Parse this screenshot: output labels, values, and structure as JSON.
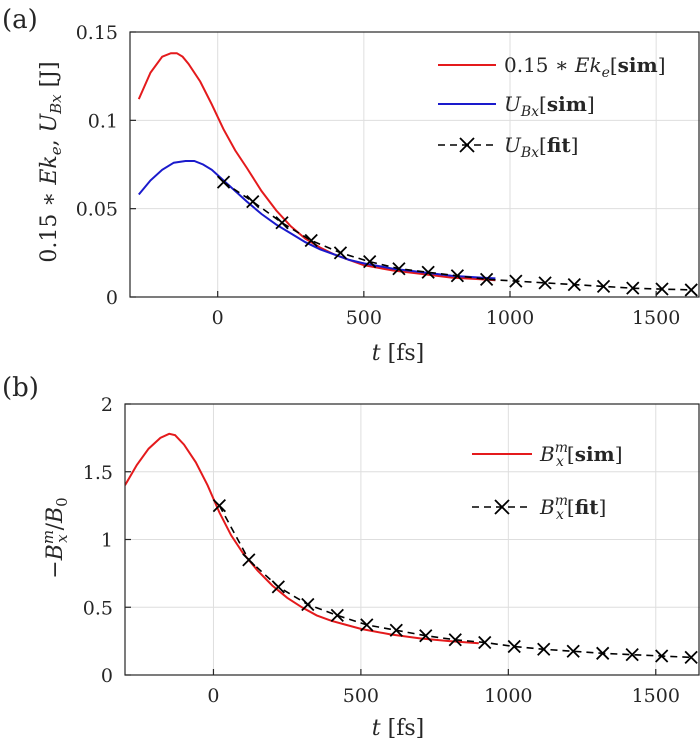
{
  "colors": {
    "red": "#e41a1c",
    "blue": "#1a1acc",
    "black": "#000000",
    "grid": "#dedede",
    "axis": "#262626"
  },
  "chart_data": [
    {
      "type": "line",
      "panel_label": "(a)",
      "xlabel": "t [fs]",
      "ylabel": "0.15 * Ek_e, U_Bx [J]",
      "xlim": [
        -300,
        1650
      ],
      "ylim": [
        0,
        0.15
      ],
      "xticks": [
        "0",
        "500",
        "1000",
        "1500"
      ],
      "xtick_values": [
        0,
        500,
        1000,
        1500
      ],
      "yticks": [
        "0",
        "0.05",
        "0.1",
        "0.15"
      ],
      "ytick_values": [
        0,
        0.05,
        0.1,
        0.15
      ],
      "grid": true,
      "legend_position": "top-right",
      "series": [
        {
          "name": "0.15 * Ek_e[sim]",
          "color": "red",
          "style": "solid",
          "x": [
            -270,
            -230,
            -190,
            -160,
            -140,
            -120,
            -100,
            -60,
            -20,
            20,
            60,
            100,
            150,
            200,
            250,
            300,
            350,
            400,
            450,
            500,
            600,
            700,
            800,
            900,
            950
          ],
          "y": [
            0.112,
            0.127,
            0.136,
            0.138,
            0.138,
            0.136,
            0.132,
            0.122,
            0.109,
            0.095,
            0.083,
            0.073,
            0.06,
            0.049,
            0.04,
            0.033,
            0.028,
            0.024,
            0.021,
            0.018,
            0.015,
            0.013,
            0.011,
            0.01,
            0.0095
          ]
        },
        {
          "name": "U_Bx[sim]",
          "color": "blue",
          "style": "solid",
          "x": [
            -270,
            -230,
            -190,
            -150,
            -110,
            -80,
            -50,
            -20,
            20,
            60,
            100,
            150,
            200,
            250,
            300,
            350,
            400,
            450,
            500,
            600,
            700,
            800,
            900,
            950
          ],
          "y": [
            0.058,
            0.066,
            0.072,
            0.076,
            0.077,
            0.077,
            0.075,
            0.072,
            0.066,
            0.06,
            0.054,
            0.047,
            0.041,
            0.036,
            0.031,
            0.027,
            0.024,
            0.021,
            0.019,
            0.016,
            0.014,
            0.012,
            0.011,
            0.0105
          ]
        },
        {
          "name": "U_Bx[fit]",
          "color": "black",
          "style": "dashed",
          "marker": "x",
          "x": [
            20,
            120,
            220,
            320,
            420,
            520,
            620,
            720,
            820,
            920,
            1020,
            1120,
            1220,
            1320,
            1420,
            1520,
            1620
          ],
          "y": [
            0.065,
            0.054,
            0.042,
            0.032,
            0.025,
            0.02,
            0.016,
            0.014,
            0.012,
            0.01,
            0.009,
            0.008,
            0.007,
            0.006,
            0.005,
            0.0045,
            0.004
          ]
        }
      ]
    },
    {
      "type": "line",
      "panel_label": "(b)",
      "xlabel": "t [fs]",
      "ylabel": "-B_x^m / B_0",
      "xlim": [
        -300,
        1650
      ],
      "ylim": [
        0,
        2
      ],
      "xticks": [
        "0",
        "500",
        "1000",
        "1500"
      ],
      "xtick_values": [
        0,
        500,
        1000,
        1500
      ],
      "yticks": [
        "0",
        "0.5",
        "1",
        "1.5",
        "2"
      ],
      "ytick_values": [
        0,
        0.5,
        1,
        1.5,
        2
      ],
      "grid": true,
      "legend_position": "top-right",
      "series": [
        {
          "name": "B_x^m[sim]",
          "color": "red",
          "style": "solid",
          "x": [
            -300,
            -260,
            -220,
            -180,
            -150,
            -130,
            -100,
            -60,
            -20,
            20,
            60,
            100,
            150,
            200,
            250,
            300,
            350,
            400,
            450,
            500,
            600,
            700,
            800,
            900
          ],
          "y": [
            1.4,
            1.55,
            1.67,
            1.75,
            1.78,
            1.77,
            1.7,
            1.57,
            1.4,
            1.2,
            1.03,
            0.9,
            0.77,
            0.66,
            0.57,
            0.5,
            0.44,
            0.4,
            0.37,
            0.34,
            0.3,
            0.27,
            0.25,
            0.235
          ]
        },
        {
          "name": "B_x^m[fit]",
          "color": "black",
          "style": "dashed",
          "marker": "x",
          "x": [
            20,
            120,
            220,
            320,
            420,
            520,
            620,
            720,
            820,
            920,
            1020,
            1120,
            1220,
            1320,
            1420,
            1520,
            1620
          ],
          "y": [
            1.25,
            0.85,
            0.65,
            0.52,
            0.44,
            0.37,
            0.33,
            0.29,
            0.26,
            0.24,
            0.21,
            0.19,
            0.175,
            0.16,
            0.15,
            0.14,
            0.13
          ]
        }
      ]
    }
  ]
}
